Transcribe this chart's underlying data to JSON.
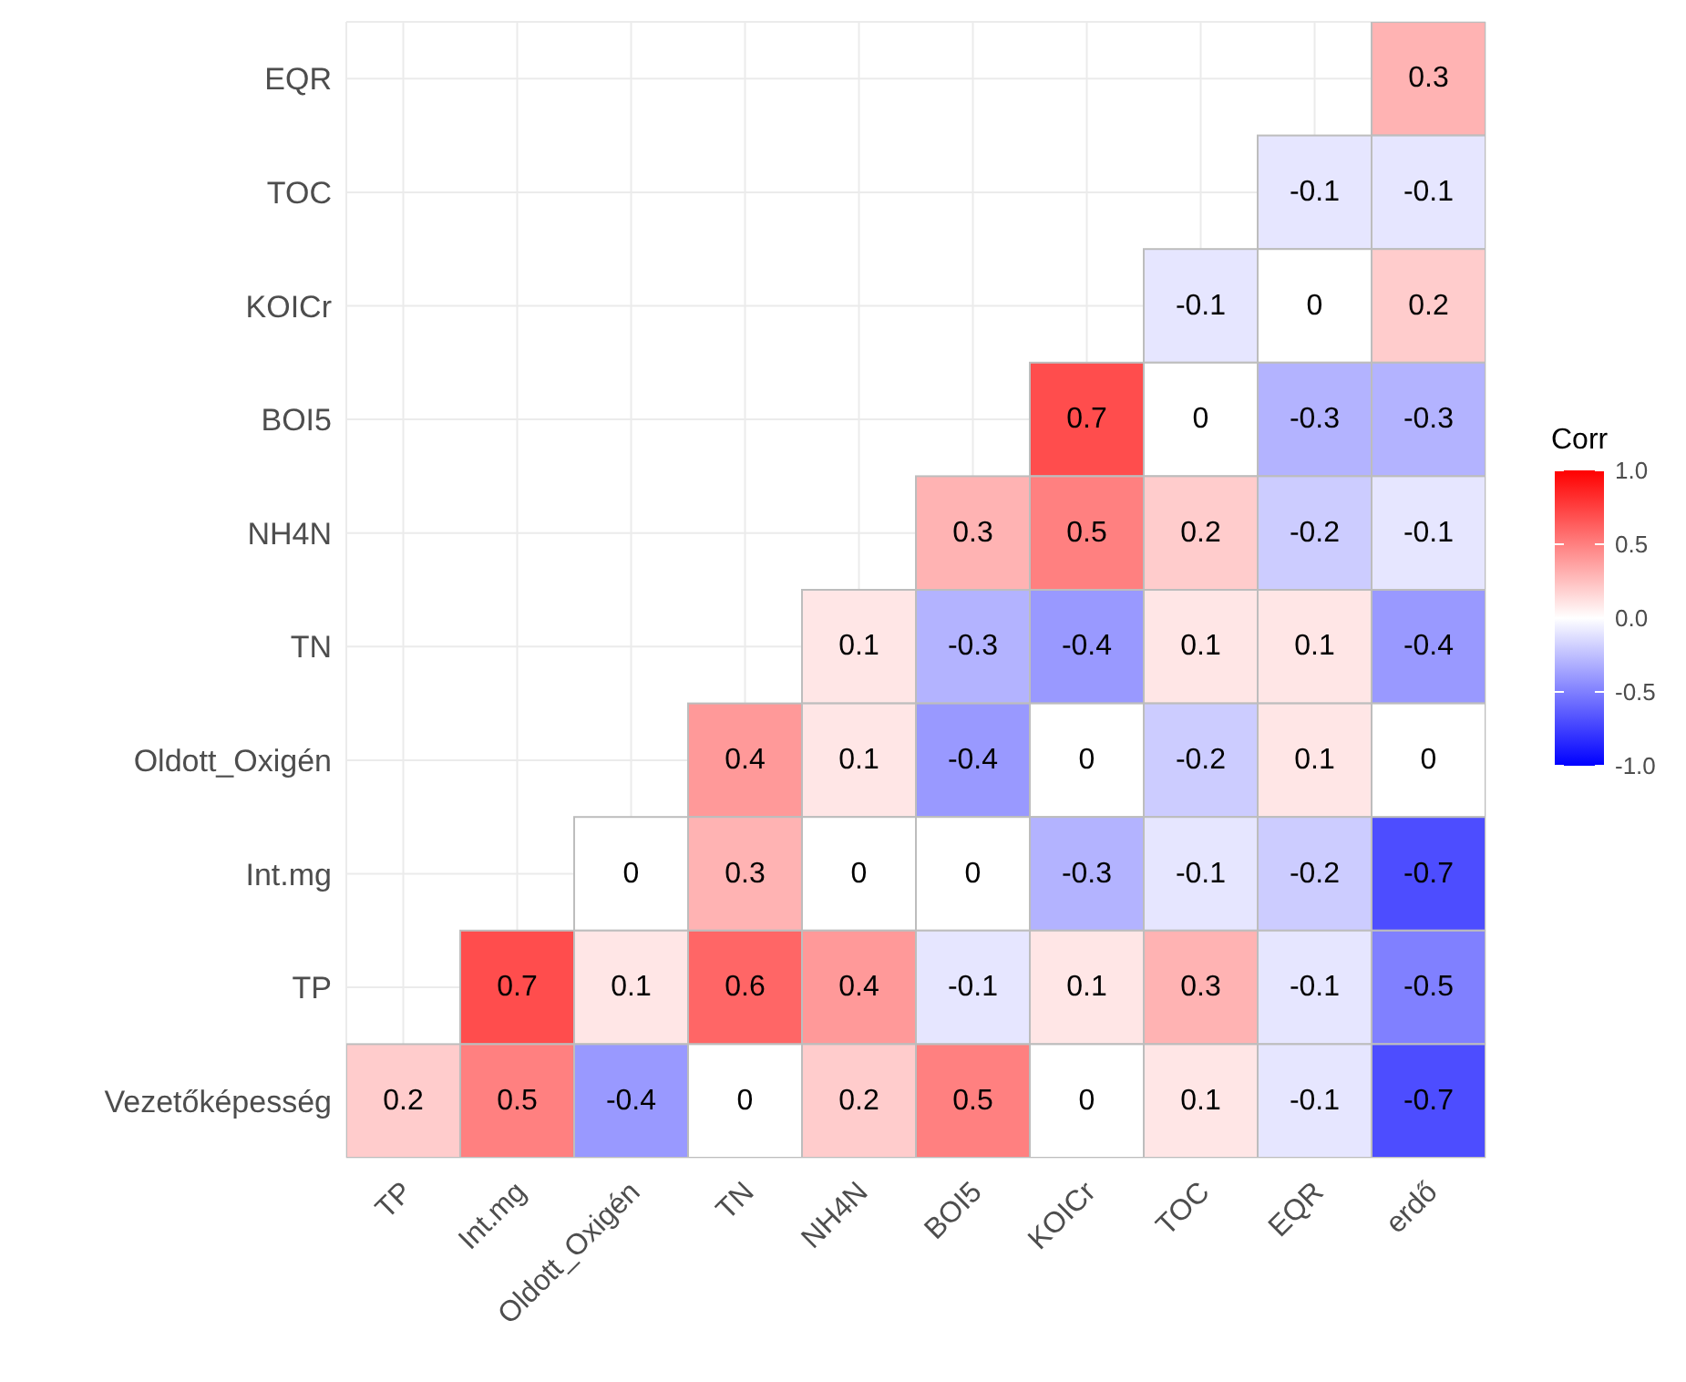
{
  "chart_data": {
    "type": "heatmap",
    "categories": [
      "TP",
      "Int.mg",
      "Oldott_Oxigén",
      "TN",
      "NH4N",
      "BOI5",
      "KOICr",
      "TOC",
      "EQR",
      "erdő"
    ],
    "y_categories": [
      "EQR",
      "TOC",
      "KOICr",
      "BOI5",
      "NH4N",
      "TN",
      "Oldott_Oxigén",
      "Int.mg",
      "TP",
      "Vezetőképesség"
    ],
    "cells": [
      [
        null,
        null,
        null,
        null,
        null,
        null,
        null,
        null,
        null,
        0.3
      ],
      [
        null,
        null,
        null,
        null,
        null,
        null,
        null,
        null,
        -0.1,
        -0.1
      ],
      [
        null,
        null,
        null,
        null,
        null,
        null,
        null,
        -0.1,
        0,
        0.2
      ],
      [
        null,
        null,
        null,
        null,
        null,
        null,
        0.7,
        0,
        -0.3,
        -0.3
      ],
      [
        null,
        null,
        null,
        null,
        null,
        0.3,
        0.5,
        0.2,
        -0.2,
        -0.1
      ],
      [
        null,
        null,
        null,
        null,
        0.1,
        -0.3,
        -0.4,
        0.1,
        0.1,
        -0.4
      ],
      [
        null,
        null,
        null,
        0.4,
        0.1,
        -0.4,
        0,
        -0.2,
        0.1,
        0
      ],
      [
        null,
        null,
        0,
        0.3,
        0,
        0,
        -0.3,
        -0.1,
        -0.2,
        -0.7
      ],
      [
        null,
        0.7,
        0.1,
        0.6,
        0.4,
        -0.1,
        0.1,
        0.3,
        -0.1,
        -0.5
      ],
      [
        0.2,
        0.5,
        -0.4,
        0,
        0.2,
        0.5,
        0,
        0.1,
        -0.1,
        -0.7
      ]
    ],
    "data_labels": true,
    "clabel": "Corr",
    "clim": [
      -1,
      1
    ],
    "cticks": [
      {
        "value": 1,
        "label": "1.0"
      },
      {
        "value": 0.5,
        "label": "0.5"
      },
      {
        "value": 0,
        "label": "0.0"
      },
      {
        "value": -0.5,
        "label": "-0.5"
      },
      {
        "value": -1,
        "label": "-1.0"
      }
    ],
    "grid": true
  }
}
